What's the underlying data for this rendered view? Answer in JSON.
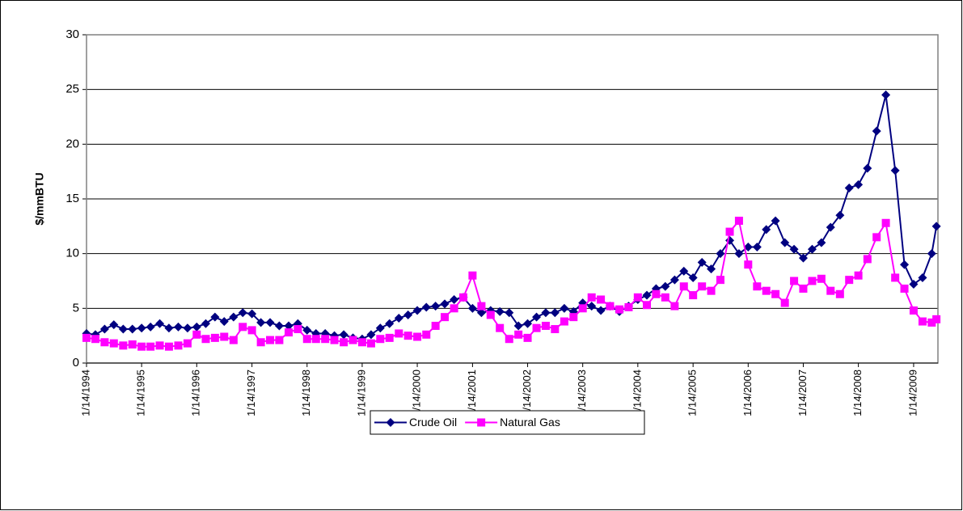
{
  "chart_data": {
    "type": "line",
    "y_label": "$/mmBTU",
    "x": [
      "1/14/1994",
      "3/14/1994",
      "5/14/1994",
      "7/14/1994",
      "9/14/1994",
      "11/14/1994",
      "1/14/1995",
      "3/14/1995",
      "5/14/1995",
      "7/14/1995",
      "9/14/1995",
      "11/14/1995",
      "1/14/1996",
      "3/14/1996",
      "5/14/1996",
      "7/14/1996",
      "9/14/1996",
      "11/14/1996",
      "1/14/1997",
      "3/14/1997",
      "5/14/1997",
      "7/14/1997",
      "9/14/1997",
      "11/14/1997",
      "1/14/1998",
      "3/14/1998",
      "5/14/1998",
      "7/14/1998",
      "9/14/1998",
      "11/14/1998",
      "1/14/1999",
      "3/14/1999",
      "5/14/1999",
      "7/14/1999",
      "9/14/1999",
      "11/14/1999",
      "1/14/2000",
      "3/14/2000",
      "5/14/2000",
      "7/14/2000",
      "9/14/2000",
      "11/14/2000",
      "1/14/2001",
      "3/14/2001",
      "5/14/2001",
      "7/14/2001",
      "9/14/2001",
      "11/14/2001",
      "1/14/2002",
      "3/14/2002",
      "5/14/2002",
      "7/14/2002",
      "9/14/2002",
      "11/14/2002",
      "1/14/2003",
      "3/14/2003",
      "5/14/2003",
      "7/14/2003",
      "9/14/2003",
      "11/14/2003",
      "1/14/2004",
      "3/14/2004",
      "5/14/2004",
      "7/14/2004",
      "9/14/2004",
      "11/14/2004",
      "1/14/2005",
      "3/14/2005",
      "5/14/2005",
      "7/14/2005",
      "9/14/2005",
      "11/14/2005",
      "1/14/2006",
      "3/14/2006",
      "5/14/2006",
      "7/14/2006",
      "9/14/2006",
      "11/14/2006",
      "1/14/2007",
      "3/14/2007",
      "5/14/2007",
      "7/14/2007",
      "9/14/2007",
      "11/14/2007",
      "1/14/2008",
      "3/14/2008",
      "5/14/2008",
      "7/14/2008",
      "9/14/2008",
      "11/14/2008",
      "1/14/2009",
      "3/14/2009",
      "5/14/2009",
      "6/14/2009"
    ],
    "series": [
      {
        "name": "Crude Oil",
        "color": "#000080",
        "marker": "diamond",
        "values": [
          2.7,
          2.6,
          3.1,
          3.5,
          3.1,
          3.1,
          3.2,
          3.3,
          3.6,
          3.2,
          3.3,
          3.2,
          3.3,
          3.6,
          4.2,
          3.8,
          4.2,
          4.6,
          4.5,
          3.7,
          3.7,
          3.4,
          3.4,
          3.6,
          3.0,
          2.7,
          2.7,
          2.5,
          2.6,
          2.3,
          2.2,
          2.6,
          3.2,
          3.6,
          4.1,
          4.4,
          4.8,
          5.1,
          5.2,
          5.4,
          5.8,
          6.0,
          5.0,
          4.6,
          4.8,
          4.7,
          4.6,
          3.4,
          3.6,
          4.2,
          4.6,
          4.6,
          5.0,
          4.7,
          5.5,
          5.2,
          4.8,
          5.2,
          4.7,
          5.2,
          5.8,
          6.2,
          6.8,
          7.0,
          7.6,
          8.4,
          7.8,
          9.2,
          8.6,
          10.0,
          11.2,
          10.0,
          10.6,
          10.6,
          12.2,
          13.0,
          11.0,
          10.4,
          9.6,
          10.4,
          11.0,
          12.4,
          13.5,
          16.0,
          16.3,
          17.8,
          21.2,
          24.5,
          17.6,
          9.0,
          7.2,
          7.8,
          10.0,
          12.5
        ]
      },
      {
        "name": "Natural Gas",
        "color": "#ff00ff",
        "marker": "square",
        "values": [
          2.3,
          2.2,
          1.9,
          1.8,
          1.6,
          1.7,
          1.5,
          1.5,
          1.6,
          1.5,
          1.6,
          1.8,
          2.6,
          2.2,
          2.3,
          2.4,
          2.1,
          3.3,
          3.0,
          1.9,
          2.1,
          2.1,
          2.8,
          3.1,
          2.2,
          2.2,
          2.2,
          2.1,
          1.9,
          2.1,
          1.9,
          1.8,
          2.2,
          2.3,
          2.7,
          2.5,
          2.4,
          2.6,
          3.4,
          4.2,
          5.0,
          6.0,
          8.0,
          5.2,
          4.4,
          3.2,
          2.2,
          2.6,
          2.3,
          3.2,
          3.4,
          3.1,
          3.8,
          4.2,
          5.0,
          6.0,
          5.8,
          5.2,
          4.9,
          5.1,
          6.0,
          5.3,
          6.3,
          6.0,
          5.2,
          7.0,
          6.2,
          7.0,
          6.6,
          7.6,
          12.0,
          13.0,
          9.0,
          7.0,
          6.6,
          6.3,
          5.5,
          7.5,
          6.8,
          7.5,
          7.7,
          6.6,
          6.3,
          7.6,
          8.0,
          9.5,
          11.5,
          12.8,
          7.8,
          6.8,
          4.8,
          3.8,
          3.7,
          4.0
        ]
      }
    ],
    "xlim": [
      "1/14/1994",
      "6/24/2009"
    ],
    "xticks": [
      "1/14/1994",
      "1/14/1995",
      "1/14/1996",
      "1/14/1997",
      "1/14/1998",
      "1/14/1999",
      "1/14/2000",
      "1/14/2001",
      "1/14/2002",
      "1/14/2003",
      "1/14/2004",
      "1/14/2005",
      "1/14/2006",
      "1/14/2007",
      "1/14/2008",
      "1/14/2009"
    ],
    "ylim": [
      0,
      30
    ],
    "yticks": [
      0,
      5,
      10,
      15,
      20,
      25,
      30
    ],
    "grid": true,
    "legend": "bottom"
  }
}
